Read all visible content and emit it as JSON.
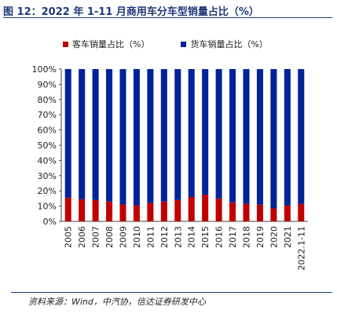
{
  "page_title": "图 12：2022 年 1-11 月商用车分车型销量占比（%）",
  "source": "资料来源：Wind，中汽协，信达证券研发中心",
  "colors": {
    "passenger": "#c00000",
    "freight": "#002398",
    "title": "#1f3a7a"
  },
  "chart_data": {
    "type": "bar",
    "stacked": true,
    "title": "",
    "xlabel": "",
    "ylabel": "",
    "categories": [
      "2005",
      "2006",
      "2007",
      "2008",
      "2009",
      "2010",
      "2011",
      "2012",
      "2013",
      "2014",
      "2015",
      "2016",
      "2017",
      "2018",
      "2019",
      "2020",
      "2021",
      "2022.1-11"
    ],
    "series": [
      {
        "name": "客车销量占比（%）",
        "values": [
          15.5,
          14.5,
          14.0,
          13.0,
          11.0,
          10.5,
          12.0,
          13.0,
          14.0,
          16.0,
          17.5,
          15.0,
          12.5,
          11.5,
          11.0,
          8.5,
          10.5,
          11.5
        ]
      },
      {
        "name": "货车销量占比（%）",
        "values": [
          84.5,
          85.5,
          86.0,
          87.0,
          89.0,
          89.5,
          88.0,
          87.0,
          86.0,
          84.0,
          82.5,
          85.0,
          87.5,
          88.5,
          89.0,
          91.5,
          89.5,
          88.5
        ]
      }
    ],
    "yticks": [
      "0%",
      "10%",
      "20%",
      "30%",
      "40%",
      "50%",
      "60%",
      "70%",
      "80%",
      "90%",
      "100%"
    ],
    "ylim": [
      0,
      100
    ],
    "grid": false,
    "legend_position": "top"
  }
}
